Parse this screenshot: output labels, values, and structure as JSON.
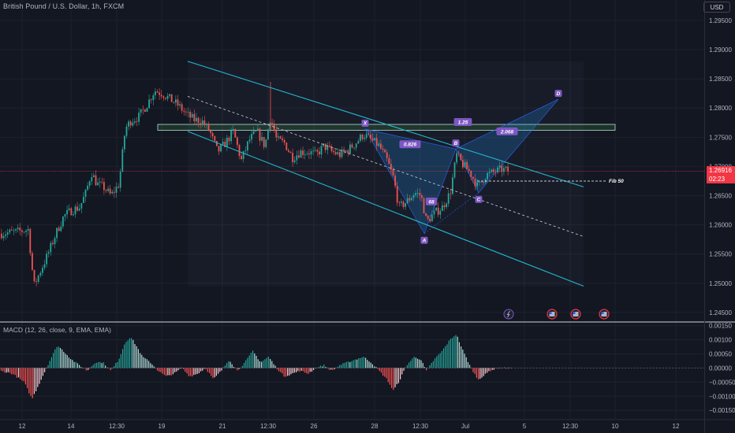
{
  "header": {
    "symbol_title": "British Pound / U.S. Dollar, 1h, FXCM",
    "currency": "USD"
  },
  "price_badge": {
    "price": "1.26916",
    "countdown": "02:23"
  },
  "macd": {
    "title": "MACD (12, 26, close, 9, EMA, EMA)"
  },
  "colors": {
    "background": "#131722",
    "up": "#26a69a",
    "down": "#ef5350",
    "channel": "#22b8cf",
    "pattern": "#7e57c2",
    "grid": "#1e222d",
    "price_line": "#f23645"
  },
  "chart_data": [
    {
      "type": "candlestick",
      "title": "",
      "price_axis_ticks": [
        "1.29500",
        "1.29000",
        "1.28500",
        "1.28000",
        "1.27500",
        "1.27000",
        "1.26500",
        "1.26000",
        "1.25500",
        "1.25000",
        "1.24500"
      ],
      "price_axis_values": [
        1.295,
        1.29,
        1.285,
        1.28,
        1.275,
        1.27,
        1.265,
        1.26,
        1.255,
        1.25,
        1.245
      ],
      "ylim": [
        1.2435,
        1.2985
      ],
      "time_axis_labels": [
        "12",
        "14",
        "12:30",
        "19",
        "21",
        "12:30",
        "26",
        "28",
        "12:30",
        "Jul",
        "5",
        "12:30",
        "10",
        "12"
      ],
      "last_price": 1.26916,
      "close_path": [
        [
          0,
          1.2585
        ],
        [
          20,
          1.2588
        ],
        [
          35,
          1.2592
        ],
        [
          42,
          1.2495
        ],
        [
          50,
          1.252
        ],
        [
          60,
          1.255
        ],
        [
          70,
          1.2585
        ],
        [
          80,
          1.2615
        ],
        [
          90,
          1.2625
        ],
        [
          100,
          1.263
        ],
        [
          108,
          1.2655
        ],
        [
          115,
          1.269
        ],
        [
          122,
          1.267
        ],
        [
          130,
          1.2665
        ],
        [
          140,
          1.265
        ],
        [
          150,
          1.267
        ],
        [
          158,
          1.2765
        ],
        [
          165,
          1.2778
        ],
        [
          175,
          1.2785
        ],
        [
          185,
          1.2805
        ],
        [
          195,
          1.283
        ],
        [
          205,
          1.2825
        ],
        [
          215,
          1.2815
        ],
        [
          225,
          1.2805
        ],
        [
          235,
          1.279
        ],
        [
          245,
          1.278
        ],
        [
          255,
          1.2778
        ],
        [
          265,
          1.276
        ],
        [
          275,
          1.2725
        ],
        [
          285,
          1.274
        ],
        [
          295,
          1.276
        ],
        [
          305,
          1.271
        ],
        [
          315,
          1.2745
        ],
        [
          325,
          1.276
        ],
        [
          335,
          1.2735
        ],
        [
          342,
          1.2785
        ],
        [
          350,
          1.2745
        ],
        [
          360,
          1.274
        ],
        [
          370,
          1.2715
        ],
        [
          380,
          1.2725
        ],
        [
          390,
          1.2725
        ],
        [
          400,
          1.272
        ],
        [
          410,
          1.2735
        ],
        [
          420,
          1.2725
        ],
        [
          430,
          1.272
        ],
        [
          440,
          1.2728
        ],
        [
          450,
          1.274
        ],
        [
          460,
          1.2755
        ],
        [
          470,
          1.2745
        ],
        [
          480,
          1.2735
        ],
        [
          490,
          1.271
        ],
        [
          498,
          1.268
        ],
        [
          505,
          1.263
        ],
        [
          515,
          1.264
        ],
        [
          525,
          1.2655
        ],
        [
          533,
          1.265
        ],
        [
          540,
          1.2605
        ],
        [
          550,
          1.262
        ],
        [
          560,
          1.263
        ],
        [
          570,
          1.2655
        ],
        [
          578,
          1.272
        ],
        [
          585,
          1.2705
        ],
        [
          595,
          1.269
        ],
        [
          605,
          1.2665
        ],
        [
          615,
          1.2685
        ],
        [
          625,
          1.269
        ],
        [
          635,
          1.2695
        ],
        [
          645,
          1.2692
        ]
      ],
      "drawings": {
        "channel_upper": [
          [
            238,
            1.288
          ],
          [
            740,
            1.2665
          ]
        ],
        "channel_lower": [
          [
            238,
            1.276
          ],
          [
            740,
            1.2495
          ]
        ],
        "channel_mid": [
          [
            238,
            1.282
          ],
          [
            740,
            1.258
          ]
        ],
        "resistance_zone": {
          "x1": 200,
          "x2": 780,
          "top": 1.2772,
          "bottom": 1.2762
        },
        "pattern_points": [
          {
            "label": "X",
            "x": 463,
            "y": 1.2764
          },
          {
            "label": "A",
            "x": 538,
            "y": 1.2585
          },
          {
            "label": "B",
            "x": 578,
            "y": 1.273
          },
          {
            "label": "C",
            "x": 607,
            "y": 1.2655
          },
          {
            "label": "D",
            "x": 708,
            "y": 1.2815
          }
        ],
        "ratio_labels": [
          {
            "text": "0.826",
            "x": 520,
            "y": 1.2738
          },
          {
            "text": "1.25",
            "x": 587,
            "y": 1.2776
          },
          {
            "text": "2.068",
            "x": 643,
            "y": 1.276
          },
          {
            "text": "68",
            "x": 547,
            "y": 1.264
          }
        ],
        "fib_line": {
          "label": "Fib 50",
          "x1": 605,
          "x2": 768,
          "y": 1.2675
        }
      }
    },
    {
      "type": "histogram",
      "title": "MACD (12, 26, close, 9, EMA, EMA)",
      "axis_ticks": [
        "0.00150",
        "0.00100",
        "0.00050",
        "0.00000",
        "−0.00050",
        "−0.00100",
        "−0.00150"
      ],
      "axis_values": [
        0.0015,
        0.001,
        0.0005,
        0,
        -0.0005,
        -0.001,
        -0.0015
      ],
      "ylim": [
        -0.0018,
        0.0016
      ],
      "histogram_path": [
        [
          0,
          -0.0001
        ],
        [
          15,
          -0.0002
        ],
        [
          30,
          -0.0005
        ],
        [
          40,
          -0.0011
        ],
        [
          45,
          -0.0008
        ],
        [
          55,
          -0.0002
        ],
        [
          65,
          0.0004
        ],
        [
          72,
          0.0008
        ],
        [
          80,
          0.0006
        ],
        [
          90,
          0.0003
        ],
        [
          100,
          0.0001
        ],
        [
          110,
          -0.0001
        ],
        [
          120,
          0.0002
        ],
        [
          130,
          0.0002
        ],
        [
          140,
          -0.0001
        ],
        [
          150,
          0.0003
        ],
        [
          158,
          0.0009
        ],
        [
          165,
          0.0011
        ],
        [
          172,
          0.0008
        ],
        [
          180,
          0.0004
        ],
        [
          190,
          0.0002
        ],
        [
          200,
          -0.0001
        ],
        [
          210,
          -0.0003
        ],
        [
          220,
          -0.0002
        ],
        [
          230,
          0.0
        ],
        [
          240,
          -0.0003
        ],
        [
          250,
          -0.0002
        ],
        [
          260,
          0.0
        ],
        [
          270,
          -0.0004
        ],
        [
          280,
          -0.0001
        ],
        [
          290,
          0.0003
        ],
        [
          300,
          -0.0001
        ],
        [
          310,
          0.0002
        ],
        [
          320,
          0.0006
        ],
        [
          330,
          0.0002
        ],
        [
          340,
          0.0004
        ],
        [
          350,
          0.0
        ],
        [
          360,
          -0.0003
        ],
        [
          370,
          -0.0002
        ],
        [
          380,
          -0.0001
        ],
        [
          390,
          -0.0002
        ],
        [
          400,
          0.0
        ],
        [
          410,
          0.0001
        ],
        [
          420,
          -0.0001
        ],
        [
          430,
          0.0001
        ],
        [
          440,
          0.0002
        ],
        [
          450,
          0.0003
        ],
        [
          460,
          0.0004
        ],
        [
          470,
          0.0002
        ],
        [
          480,
          -0.0001
        ],
        [
          490,
          -0.0004
        ],
        [
          498,
          -0.0008
        ],
        [
          505,
          -0.0005
        ],
        [
          515,
          0.0001
        ],
        [
          525,
          0.0004
        ],
        [
          533,
          0.0003
        ],
        [
          540,
          -0.0001
        ],
        [
          550,
          0.0003
        ],
        [
          560,
          0.0006
        ],
        [
          570,
          0.001
        ],
        [
          578,
          0.0012
        ],
        [
          585,
          0.0007
        ],
        [
          595,
          0.0001
        ],
        [
          605,
          -0.0004
        ],
        [
          612,
          -0.0003
        ],
        [
          620,
          -0.0001
        ],
        [
          630,
          0.0
        ],
        [
          640,
          0.0
        ],
        [
          648,
          0.0
        ]
      ]
    }
  ]
}
